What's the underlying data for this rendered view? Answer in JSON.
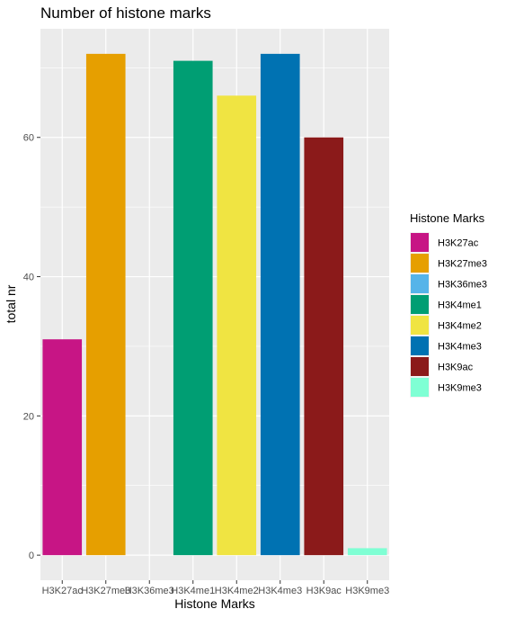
{
  "chart_data": {
    "type": "bar",
    "title": "Number of histone marks",
    "xlabel": "Histone Marks",
    "ylabel": "total nr",
    "categories": [
      "H3K27ac",
      "H3K27me3",
      "H3K36me3",
      "H3K4me1",
      "H3K4me2",
      "H3K4me3",
      "H3K9ac",
      "H3K9me3"
    ],
    "values": [
      31,
      72,
      0,
      71,
      66,
      72,
      60,
      1
    ],
    "colors": [
      "#c71585",
      "#e69f00",
      "#56b4e9",
      "#009e73",
      "#f0e442",
      "#0072b2",
      "#8b1a1a",
      "#7fffd4"
    ],
    "yticks": [
      0,
      20,
      40,
      60
    ],
    "ylim": [
      -3.6,
      75.6
    ],
    "grid": true,
    "panel_background": "#ebebeb",
    "legend": {
      "title": "Histone Marks",
      "position": "right",
      "entries": [
        "H3K27ac",
        "H3K27me3",
        "H3K36me3",
        "H3K4me1",
        "H3K4me2",
        "H3K4me3",
        "H3K9ac",
        "H3K9me3"
      ]
    }
  }
}
